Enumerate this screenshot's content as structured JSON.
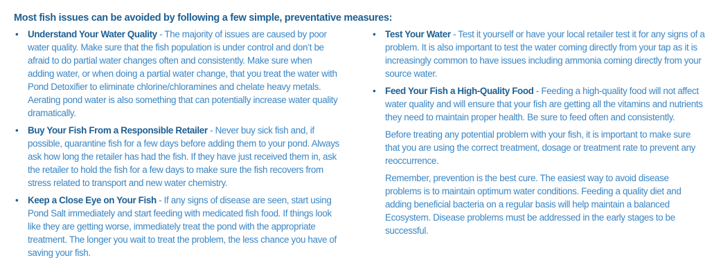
{
  "title": "Most fish issues can be avoided by following a few simple, preventative measures:",
  "left_items": [
    {
      "heading": "Understand Your Water Quality",
      "text": " - The majority of issues are caused by poor water quality. Make sure that the fish population is under control and don’t be afraid to do partial water changes often and consistently. Make sure when adding water, or when doing a partial water change, that you treat the water with Pond Detoxifier to eliminate chlorine/chloramines and chelate heavy metals. Aerating pond water is also something that can potentially increase water quality dramatically."
    },
    {
      "heading": "Buy Your Fish From a Responsible Retailer",
      "text": " - Never buy sick fish and, if possible, quarantine fish for a few days before adding them to your pond. Always ask how long the retailer has had the fish. If they have just received them in, ask the retailer to hold the fish for a few days to make sure the fish recovers from stress related to transport and new water chemistry."
    },
    {
      "heading": "Keep a Close Eye on Your Fish",
      "text": " - If any signs of disease are seen, start using Pond Salt immediately and start feeding with medicated fish food. If things look like they are getting worse, immediately treat the pond with the appropriate treatment. The longer you wait to treat the problem, the less chance you have of saving your fish."
    }
  ],
  "right_items": [
    {
      "heading": "Test Your Water",
      "text": " - Test it yourself or have your local retailer test it for any signs of a problem. It is also important to test the water coming directly from your tap as it is increasingly common to have issues including ammonia coming directly from your source water."
    },
    {
      "heading": "Feed Your Fish a High-Quality Food",
      "text": " -  Feeding a high-quality food will not affect water quality and will ensure that your fish are getting all the vitamins and nutrients they need to maintain proper health. Be sure to feed often and consistently."
    }
  ],
  "paragraphs": [
    "Before treating any potential problem with your fish, it is important to make sure that you are using the correct treatment, dosage or treatment rate to prevent any reoccurrence.",
    "Remember, prevention is the best cure. The easiest way to avoid disease problems is to maintain optimum water conditions. Feeding a quality diet and adding beneficial bacteria on a regular basis will help maintain a balanced Ecosystem. Disease problems must be addressed in the early stages to be successful."
  ],
  "bullet": "•",
  "colors": {
    "heading": "#1d5f92",
    "body": "#3a86c4"
  }
}
